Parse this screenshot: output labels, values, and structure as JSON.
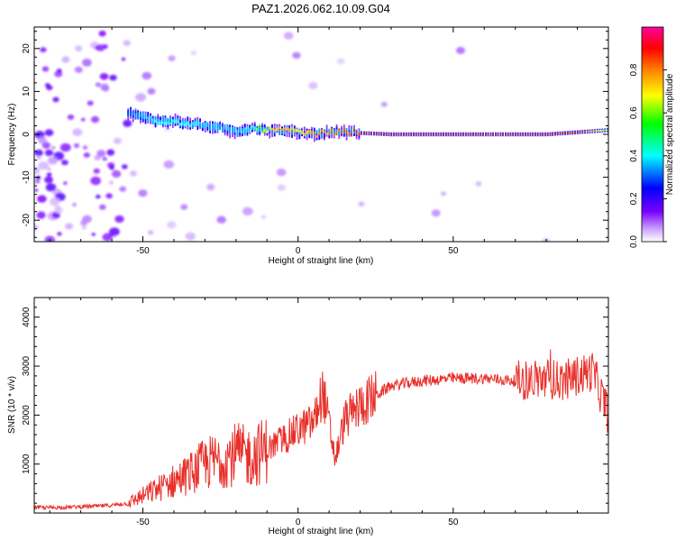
{
  "title": "PAZ1.2026.062.10.09.G04",
  "chart_data": [
    {
      "type": "heatmap",
      "title": "PAZ1.2026.062.10.09.G04",
      "xlabel": "Height of straight line (km)",
      "ylabel": "Frequency (Hz)",
      "xlim": [
        -85,
        100
      ],
      "ylim": [
        -25,
        25
      ],
      "x_ticks": [
        -50,
        0,
        50
      ],
      "y_ticks": [
        -20,
        -10,
        0,
        10,
        20
      ],
      "colorbar": {
        "label": "Normalized spectral amplitude",
        "range": [
          0,
          1
        ],
        "ticks": [
          0,
          0.2,
          0.4,
          0.6,
          0.8
        ],
        "tick_labels": [
          "0.0",
          "0.2",
          "0.4",
          "0.6",
          "0.8"
        ],
        "colors": [
          "#ffffff",
          "#7a00ff",
          "#0000ff",
          "#00ffff",
          "#00ff00",
          "#ffff00",
          "#ff8000",
          "#ff0000",
          "#ff00aa"
        ]
      },
      "ridge": {
        "x": [
          -55,
          -50,
          -45,
          -40,
          -35,
          -30,
          -25,
          -20,
          -15,
          -10,
          -5,
          0,
          5,
          10,
          15,
          20,
          30,
          40,
          50,
          60,
          70,
          80,
          90,
          100
        ],
        "frequency_hz": [
          5,
          4,
          3,
          3,
          2.5,
          2,
          1.5,
          0.5,
          1.5,
          1,
          1,
          0.5,
          0,
          0.5,
          0.5,
          0.3,
          0,
          0,
          0,
          0,
          0,
          0,
          0.5,
          1
        ],
        "amplitude": [
          0.3,
          0.35,
          0.4,
          0.4,
          0.4,
          0.35,
          0.35,
          0.35,
          0.4,
          0.7,
          0.8,
          0.7,
          0.8,
          0.8,
          0.85,
          0.9,
          0.9,
          0.9,
          0.9,
          0.9,
          0.9,
          0.9,
          0.9,
          0.6
        ]
      }
    },
    {
      "type": "line",
      "xlabel": "Height of straight line (km)",
      "ylabel": "SNR (10 * v/v)",
      "xlim": [
        -85,
        100
      ],
      "ylim": [
        0,
        4400
      ],
      "x_ticks": [
        -50,
        0,
        50
      ],
      "y_ticks": [
        1000,
        2000,
        3000,
        4000
      ],
      "color": "#e8302a",
      "x": [
        -85,
        -80,
        -75,
        -70,
        -65,
        -60,
        -55,
        -50,
        -45,
        -40,
        -35,
        -30,
        -25,
        -20,
        -15,
        -10,
        -5,
        0,
        5,
        8,
        12,
        15,
        20,
        25,
        30,
        40,
        50,
        60,
        70,
        80,
        85,
        90,
        95,
        100
      ],
      "y": [
        120,
        110,
        120,
        130,
        140,
        160,
        200,
        350,
        500,
        650,
        800,
        1000,
        1100,
        1200,
        1150,
        1300,
        1500,
        1700,
        1850,
        2500,
        1100,
        1900,
        2200,
        2400,
        2600,
        2700,
        2750,
        2750,
        2700,
        2750,
        2700,
        2800,
        2900,
        2000
      ]
    }
  ]
}
